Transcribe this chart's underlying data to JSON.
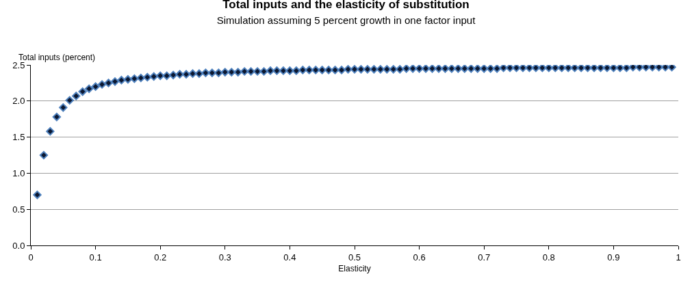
{
  "chart_data": {
    "type": "scatter",
    "title": "Total inputs and the elasticity of substitution",
    "subtitle": "Simulation assuming 5 percent growth in one factor input",
    "xlabel": "Elasticity",
    "ylabel": "Total inputs (percent)",
    "x": [
      0.01,
      0.02,
      0.03,
      0.04,
      0.05,
      0.06,
      0.07,
      0.08,
      0.09,
      0.1,
      0.11,
      0.12,
      0.13,
      0.14,
      0.15,
      0.16,
      0.17,
      0.18,
      0.19,
      0.2,
      0.21,
      0.22,
      0.23,
      0.24,
      0.25,
      0.26,
      0.27,
      0.28,
      0.29,
      0.3,
      0.31,
      0.32,
      0.33,
      0.34,
      0.35,
      0.36,
      0.37,
      0.38,
      0.39,
      0.4,
      0.41,
      0.42,
      0.43,
      0.44,
      0.45,
      0.46,
      0.47,
      0.48,
      0.49,
      0.5,
      0.51,
      0.52,
      0.53,
      0.54,
      0.55,
      0.56,
      0.57,
      0.58,
      0.59,
      0.6,
      0.61,
      0.62,
      0.63,
      0.64,
      0.65,
      0.66,
      0.67,
      0.68,
      0.69,
      0.7,
      0.71,
      0.72,
      0.73,
      0.74,
      0.75,
      0.76,
      0.77,
      0.78,
      0.79,
      0.8,
      0.81,
      0.82,
      0.83,
      0.84,
      0.85,
      0.86,
      0.87,
      0.88,
      0.89,
      0.9,
      0.91,
      0.92,
      0.93,
      0.94,
      0.95,
      0.96,
      0.97,
      0.98,
      0.99
    ],
    "series": [
      {
        "color": "#4f81bd",
        "values": [
          0.7,
          1.25,
          1.58,
          1.78,
          1.91,
          2.01,
          2.07,
          2.13,
          2.17,
          2.2,
          2.23,
          2.25,
          2.27,
          2.29,
          2.3,
          2.31,
          2.32,
          2.33,
          2.34,
          2.35,
          2.35,
          2.36,
          2.37,
          2.37,
          2.38,
          2.38,
          2.39,
          2.39,
          2.39,
          2.4,
          2.4,
          2.4,
          2.41,
          2.41,
          2.41,
          2.41,
          2.42,
          2.42,
          2.42,
          2.42,
          2.42,
          2.43,
          2.43,
          2.43,
          2.43,
          2.43,
          2.43,
          2.43,
          2.44,
          2.44,
          2.44,
          2.44,
          2.44,
          2.44,
          2.44,
          2.44,
          2.44,
          2.45,
          2.45,
          2.45,
          2.45,
          2.45,
          2.45,
          2.45,
          2.45,
          2.45,
          2.45,
          2.45,
          2.45,
          2.45,
          2.45,
          2.45,
          2.46,
          2.46,
          2.46,
          2.46,
          2.46,
          2.46,
          2.46,
          2.46,
          2.46,
          2.46,
          2.46,
          2.46,
          2.46,
          2.46,
          2.46,
          2.46,
          2.46,
          2.46,
          2.46,
          2.46,
          2.47,
          2.47,
          2.47,
          2.47,
          2.47,
          2.47,
          2.47
        ]
      }
    ],
    "marker": "diamond",
    "grid": "y",
    "xlim": [
      0,
      1
    ],
    "xticks": [
      0,
      0.1,
      0.2,
      0.3,
      0.4,
      0.5,
      0.6,
      0.7,
      0.8,
      0.9,
      1
    ],
    "ylim": [
      0,
      2.5
    ],
    "yticks": [
      {
        "value": 0,
        "label": "0.0"
      },
      0.5,
      {
        "value": 1,
        "label": "1.0"
      },
      1.5,
      {
        "value": 2,
        "label": "2.0"
      },
      2.5
    ]
  }
}
